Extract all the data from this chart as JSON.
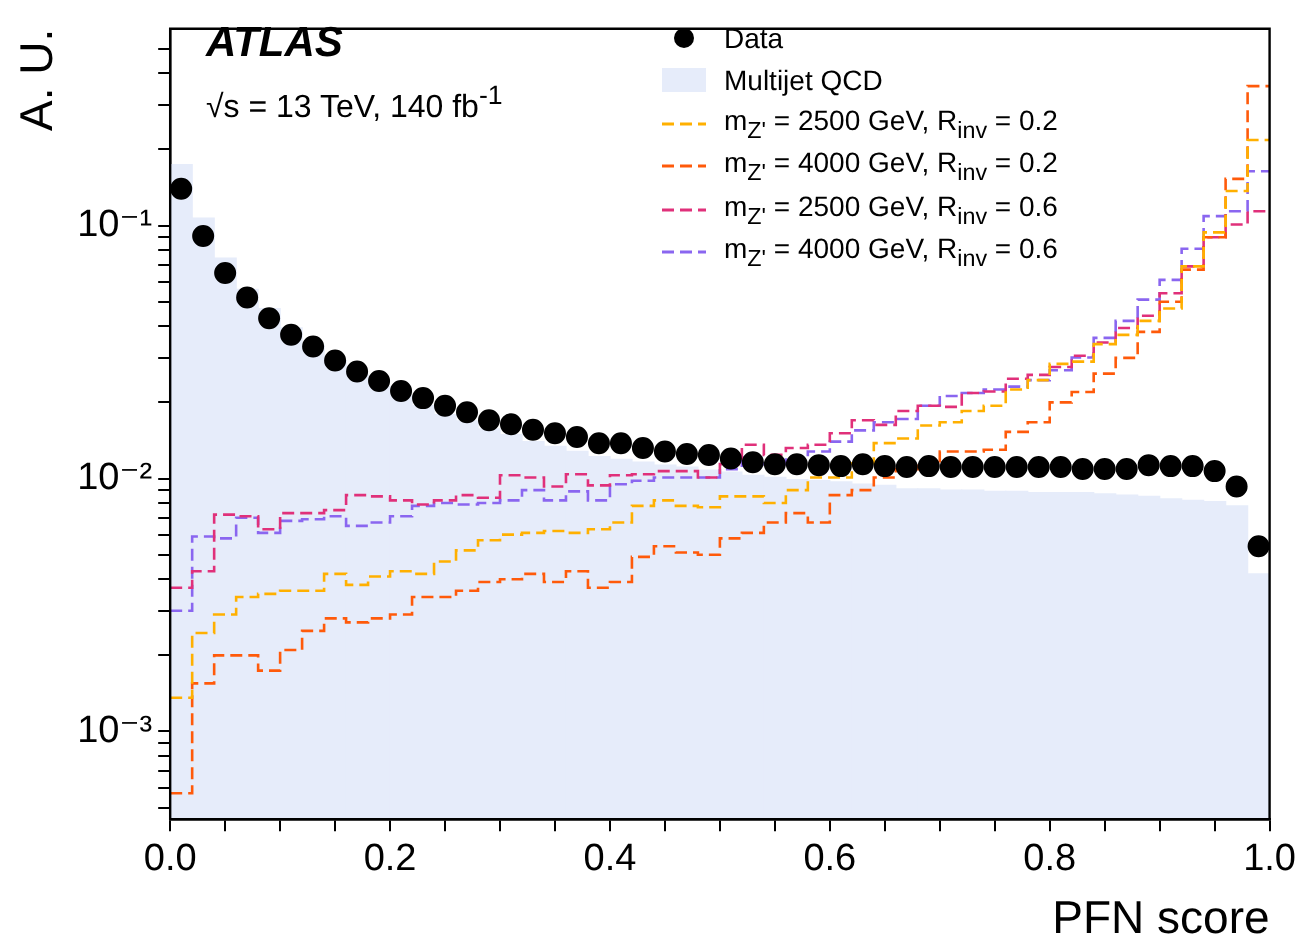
{
  "chart_data": {
    "type": "histogram",
    "xlabel": "PFN score",
    "ylabel": "A. U.",
    "annotations": [
      "ATLAS",
      "√s = 13 TeV, 140 fb$^{-1}$"
    ],
    "bins": [
      0,
      0.02,
      0.04,
      0.06,
      0.08,
      0.1,
      0.12,
      0.14,
      0.16,
      0.18,
      0.2,
      0.22,
      0.24,
      0.26,
      0.28,
      0.3,
      0.32,
      0.34,
      0.36,
      0.38,
      0.4,
      0.42,
      0.44,
      0.46,
      0.48,
      0.5,
      0.52,
      0.54,
      0.56,
      0.58,
      0.6,
      0.62,
      0.64,
      0.66,
      0.68,
      0.7,
      0.72,
      0.74,
      0.76,
      0.78,
      0.8,
      0.82,
      0.84,
      0.86,
      0.88,
      0.9,
      0.92,
      0.94,
      0.96,
      0.98,
      1
    ],
    "series": [
      {
        "name": "Data",
        "type": "scatter",
        "color": "#000000",
        "marker": "circle",
        "x": [
          0.01,
          0.03,
          0.05,
          0.07,
          0.09,
          0.11,
          0.13,
          0.15,
          0.17,
          0.19,
          0.21,
          0.23,
          0.25,
          0.27,
          0.29,
          0.31,
          0.33,
          0.35,
          0.37,
          0.39,
          0.41,
          0.43,
          0.45,
          0.47,
          0.49,
          0.51,
          0.53,
          0.55,
          0.57,
          0.59,
          0.61,
          0.63,
          0.65,
          0.67,
          0.69,
          0.71,
          0.73,
          0.75,
          0.77,
          0.79,
          0.81,
          0.83,
          0.85,
          0.87,
          0.89,
          0.91,
          0.93,
          0.95,
          0.97,
          0.99
        ],
        "values": [
          0.14,
          0.091,
          0.065,
          0.052,
          0.043,
          0.037,
          0.0333,
          0.0293,
          0.0265,
          0.0243,
          0.0222,
          0.0208,
          0.0194,
          0.0183,
          0.017,
          0.0164,
          0.0156,
          0.0151,
          0.0146,
          0.0138,
          0.0138,
          0.0132,
          0.0128,
          0.0125,
          0.0124,
          0.012,
          0.0116,
          0.0114,
          0.0114,
          0.0113,
          0.0112,
          0.0114,
          0.0112,
          0.0111,
          0.0112,
          0.0111,
          0.0111,
          0.0111,
          0.0111,
          0.0111,
          0.0111,
          0.0109,
          0.0109,
          0.0109,
          0.0113,
          0.0112,
          0.0112,
          0.0107,
          0.0093,
          0.0054
        ]
      },
      {
        "name": "Multijet QCD",
        "color": "#e6ecfa",
        "values": [
          0.174,
          0.107,
          0.0744,
          0.056,
          0.047,
          0.0394,
          0.0336,
          0.0293,
          0.0257,
          0.0231,
          0.0212,
          0.0194,
          0.0179,
          0.0169,
          0.0157,
          0.0149,
          0.014,
          0.0134,
          0.0128,
          0.0122,
          0.0119,
          0.0116,
          0.0113,
          0.0111,
          0.0108,
          0.0106,
          0.0103,
          0.0101,
          0.0099,
          0.0098,
          0.0097,
          0.0095,
          0.0094,
          0.0091,
          0.0091,
          0.009,
          0.009,
          0.0089,
          0.0089,
          0.0088,
          0.0088,
          0.0088,
          0.0087,
          0.0086,
          0.0085,
          0.0083,
          0.0082,
          0.0081,
          0.0078,
          0.0042
        ]
      },
      {
        "name": "m$_{Z'}$ = 2500 GeV, R$_{inv}$ = 0.2",
        "color": "#ffb000",
        "line_style": "dashed",
        "values": [
          0.00136,
          0.00245,
          0.0029,
          0.0034,
          0.0035,
          0.0036,
          0.0036,
          0.0042,
          0.0038,
          0.0041,
          0.0043,
          0.0042,
          0.0047,
          0.0052,
          0.0057,
          0.006,
          0.0061,
          0.0062,
          0.0061,
          0.0063,
          0.0067,
          0.0078,
          0.0082,
          0.0078,
          0.0077,
          0.0085,
          0.0085,
          0.008,
          0.009,
          0.0101,
          0.0101,
          0.0115,
          0.0138,
          0.0144,
          0.0162,
          0.0167,
          0.0185,
          0.0194,
          0.0225,
          0.0245,
          0.0284,
          0.029,
          0.034,
          0.037,
          0.042,
          0.047,
          0.069,
          0.094,
          0.137,
          0.218
        ]
      },
      {
        "name": "m$_{Z'}$ = 4000 GeV, R$_{inv}$ = 0.2",
        "color": "#ff5a0a",
        "line_style": "dashed",
        "values": [
          0.00057,
          0.00155,
          0.002,
          0.002,
          0.00174,
          0.0021,
          0.0025,
          0.0028,
          0.0027,
          0.0028,
          0.0029,
          0.0034,
          0.0034,
          0.0036,
          0.0039,
          0.004,
          0.0042,
          0.0039,
          0.0043,
          0.0037,
          0.0039,
          0.0049,
          0.0054,
          0.0051,
          0.005,
          0.0058,
          0.0061,
          0.0067,
          0.0073,
          0.0067,
          0.0086,
          0.009,
          0.0101,
          0.0109,
          0.0115,
          0.0128,
          0.0128,
          0.013,
          0.0153,
          0.0167,
          0.02,
          0.022,
          0.026,
          0.03,
          0.038,
          0.05,
          0.067,
          0.09,
          0.153,
          0.356
        ]
      },
      {
        "name": "m$_{Z'}$ = 2500 GeV, R$_{inv}$ = 0.6",
        "color": "#e0307a",
        "line_style": "dashed",
        "values": [
          0.0037,
          0.0043,
          0.0072,
          0.0071,
          0.0063,
          0.0073,
          0.0073,
          0.0075,
          0.0086,
          0.0085,
          0.0082,
          0.0079,
          0.0082,
          0.0086,
          0.0084,
          0.0103,
          0.0101,
          0.0093,
          0.0104,
          0.0094,
          0.0103,
          0.0104,
          0.0107,
          0.0107,
          0.0101,
          0.0114,
          0.0136,
          0.0124,
          0.0132,
          0.0136,
          0.0151,
          0.017,
          0.0163,
          0.0185,
          0.0194,
          0.0192,
          0.0218,
          0.0221,
          0.0248,
          0.0257,
          0.0276,
          0.0306,
          0.0345,
          0.0394,
          0.044,
          0.054,
          0.069,
          0.09,
          0.101,
          0.114
        ]
      },
      {
        "name": "m$_{Z'}$ = 4000 GeV, R$_{inv}$ = 0.6",
        "color": "#8a66f0",
        "line_style": "dashed",
        "values": [
          0.003,
          0.0059,
          0.0058,
          0.007,
          0.0061,
          0.0068,
          0.0069,
          0.0071,
          0.0065,
          0.0067,
          0.0071,
          0.0078,
          0.008,
          0.0079,
          0.008,
          0.0082,
          0.009,
          0.0082,
          0.0089,
          0.0082,
          0.0095,
          0.0098,
          0.0101,
          0.0101,
          0.0101,
          0.0109,
          0.0121,
          0.0114,
          0.0122,
          0.0128,
          0.014,
          0.0155,
          0.0167,
          0.0172,
          0.0194,
          0.0212,
          0.0218,
          0.0225,
          0.0231,
          0.0245,
          0.0268,
          0.0301,
          0.036,
          0.042,
          0.051,
          0.061,
          0.081,
          0.109,
          0.114,
          0.164
        ]
      }
    ],
    "xlim": [
      0,
      1
    ],
    "xticks": [
      {
        "value": 0,
        "label": "0.0"
      },
      {
        "value": 0.05,
        "label": null
      },
      {
        "value": 0.1,
        "label": null
      },
      {
        "value": 0.15,
        "label": null
      },
      {
        "value": 0.2,
        "label": "0.2"
      },
      {
        "value": 0.25,
        "label": null
      },
      {
        "value": 0.3,
        "label": null
      },
      {
        "value": 0.35,
        "label": null
      },
      {
        "value": 0.4,
        "label": "0.4"
      },
      {
        "value": 0.45,
        "label": null
      },
      {
        "value": 0.5,
        "label": null
      },
      {
        "value": 0.55,
        "label": null
      },
      {
        "value": 0.6,
        "label": "0.6"
      },
      {
        "value": 0.65,
        "label": null
      },
      {
        "value": 0.7,
        "label": null
      },
      {
        "value": 0.75,
        "label": null
      },
      {
        "value": 0.8,
        "label": "0.8"
      },
      {
        "value": 0.85,
        "label": null
      },
      {
        "value": 0.9,
        "label": null
      },
      {
        "value": 0.95,
        "label": null
      },
      {
        "value": 1,
        "label": "1.0"
      }
    ],
    "ylim": [
      0.00045,
      0.6
    ],
    "yticks": [
      {
        "value": 0.0005,
        "label": null
      },
      {
        "value": 0.0006,
        "label": null
      },
      {
        "value": 0.0007,
        "label": null
      },
      {
        "value": 0.0008,
        "label": null
      },
      {
        "value": 0.0009,
        "label": null
      },
      {
        "value": 0.001,
        "label": "10⁻³"
      },
      {
        "value": 0.002,
        "label": null
      },
      {
        "value": 0.003,
        "label": null
      },
      {
        "value": 0.004,
        "label": null
      },
      {
        "value": 0.005,
        "label": null
      },
      {
        "value": 0.006,
        "label": null
      },
      {
        "value": 0.007,
        "label": null
      },
      {
        "value": 0.008,
        "label": null
      },
      {
        "value": 0.009,
        "label": null
      },
      {
        "value": 0.01,
        "label": "10⁻²"
      },
      {
        "value": 0.02,
        "label": null
      },
      {
        "value": 0.03,
        "label": null
      },
      {
        "value": 0.04,
        "label": null
      },
      {
        "value": 0.05,
        "label": null
      },
      {
        "value": 0.06,
        "label": null
      },
      {
        "value": 0.07,
        "label": null
      },
      {
        "value": 0.08,
        "label": null
      },
      {
        "value": 0.09,
        "label": null
      },
      {
        "value": 0.1,
        "label": "10⁻¹"
      },
      {
        "value": 0.2,
        "label": null
      },
      {
        "value": 0.3,
        "label": null
      },
      {
        "value": 0.4,
        "label": null
      },
      {
        "value": 0.5,
        "label": null
      }
    ],
    "log": "y",
    "grid": false,
    "legend": "top right"
  }
}
